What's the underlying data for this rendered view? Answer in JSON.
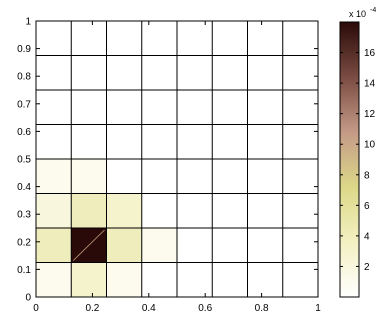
{
  "chart_data": {
    "type": "heatmap",
    "title": "",
    "xlabel": "",
    "ylabel": "",
    "xlim": [
      0,
      1
    ],
    "ylim": [
      0,
      1
    ],
    "x_ticks": [
      "0",
      "0.2",
      "0.4",
      "0.6",
      "0.8",
      "1"
    ],
    "y_ticks": [
      "0",
      "0.1",
      "0.2",
      "0.3",
      "0.4",
      "0.5",
      "0.6",
      "0.7",
      "0.8",
      "0.9",
      "1"
    ],
    "grid_cols": 8,
    "grid_rows": 8,
    "cells": [
      [
        0.0,
        0.0,
        0.0,
        0.0,
        0.0,
        0.0,
        0.0,
        0.0
      ],
      [
        0.0,
        0.0,
        0.0,
        0.0,
        0.0,
        0.0,
        0.0,
        0.0
      ],
      [
        0.0,
        0.0,
        0.0,
        0.0,
        0.0,
        0.0,
        0.0,
        0.0
      ],
      [
        0.0,
        0.0,
        0.0,
        0.0,
        0.0,
        0.0,
        0.0,
        0.0
      ],
      [
        0.0001,
        0.0001,
        0.0,
        0.0,
        0.0,
        0.0,
        0.0,
        0.0
      ],
      [
        0.0002,
        0.0004,
        0.0003,
        0.0,
        0.0,
        0.0,
        0.0,
        0.0
      ],
      [
        0.0004,
        0.0018,
        0.0004,
        0.0001,
        0.0,
        0.0,
        0.0,
        0.0
      ],
      [
        0.0001,
        0.0003,
        0.0001,
        0.0,
        0.0,
        0.0,
        0.0,
        0.0
      ]
    ],
    "colorbar": {
      "min": 0,
      "max": 18,
      "ticks": [
        "2",
        "4",
        "6",
        "8",
        "10",
        "12",
        "14",
        "16"
      ],
      "exponent_label": "x 10",
      "exponent": "-4"
    },
    "colormap": [
      "#ffffff",
      "#f3f0c2",
      "#dcd888",
      "#c49a87",
      "#7a4b42",
      "#2a0a08"
    ]
  }
}
